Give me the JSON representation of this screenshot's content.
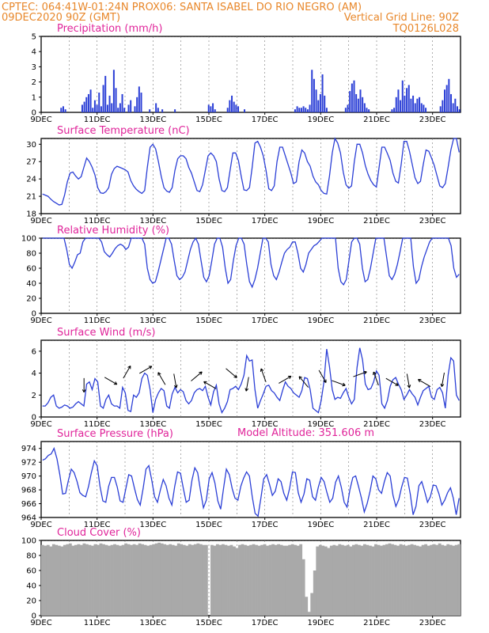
{
  "header": {
    "line1_left": "CPTEC:   064:41W-01:24N   PROX06: SANTA ISABEL DO RIO NEGRO (AM)",
    "line2_left": "09DEC2020 90Z (GMT)",
    "line2_right": "Vertical Grid Line: 90Z",
    "line3_right": "TQ0126L028",
    "model_altitude": "Model Altitude: 351.606 m"
  },
  "x_ticks": [
    "9DEC",
    "11DEC",
    "13DEC",
    "15DEC",
    "17DEC",
    "19DEC",
    "21DEC",
    "23DEC"
  ],
  "colors": {
    "header": "#e8872a",
    "title": "#e0249a",
    "line": "#2b3fd6",
    "cloud": "#a9a9a9"
  },
  "chart_data": [
    {
      "type": "bar",
      "title": "Precipitation (mm/h)",
      "ylim": [
        0,
        5
      ],
      "yticks": [
        0,
        1,
        2,
        3,
        4,
        5
      ],
      "series": [
        {
          "values": [
            0,
            0,
            0,
            0,
            0,
            0,
            0,
            0,
            0,
            0.3,
            0.4,
            0.2,
            0,
            0,
            0,
            0,
            0,
            0,
            0,
            0.5,
            0.7,
            1,
            1.2,
            1.5,
            0.3,
            0.8,
            0.5,
            1.3,
            0.4,
            1.8,
            2.4,
            0.5,
            1.1,
            0.6,
            2.8,
            1.6,
            0.3,
            0.6,
            1.2,
            0.3,
            0,
            0.5,
            0.8,
            0,
            0.4,
            1,
            1.7,
            1.3,
            0,
            0,
            0,
            0.2,
            0,
            0,
            0.6,
            0.3,
            0,
            0.2,
            0,
            0,
            0,
            0,
            0,
            0.2,
            0,
            0,
            0,
            0,
            0,
            0,
            0,
            0,
            0,
            0,
            0,
            0,
            0,
            0,
            0,
            0.5,
            0.4,
            0.6,
            0.2,
            0,
            0,
            0,
            0,
            0,
            0.3,
            0.8,
            1.1,
            0.7,
            0.5,
            0.4,
            0,
            0,
            0.2,
            0,
            0,
            0,
            0,
            0,
            0,
            0,
            0,
            0,
            0,
            0,
            0,
            0,
            0,
            0,
            0,
            0,
            0,
            0,
            0,
            0,
            0,
            0,
            0.2,
            0.4,
            0.3,
            0.3,
            0.4,
            0.3,
            0.2,
            0.5,
            2.8,
            2.2,
            1.5,
            0.8,
            1.2,
            2.5,
            1.1,
            0.3,
            0,
            0,
            0,
            0,
            0,
            0,
            0,
            0,
            0.3,
            0.5,
            1.4,
            1.9,
            2.1,
            1.2,
            0.9,
            1.5,
            1,
            0.6,
            0.3,
            0.2,
            0,
            0,
            0,
            0,
            0,
            0,
            0,
            0,
            0,
            0,
            0.2,
            0.3,
            1,
            1.5,
            0.8,
            2.1,
            1.1,
            1.6,
            1.8,
            0.9,
            1.1,
            0.6,
            0.9,
            1,
            0.6,
            0.5,
            0.3,
            0,
            0,
            0,
            0,
            0,
            0,
            0.4,
            0.8,
            1.5,
            1.8,
            2.2,
            1.2,
            0.6,
            0.9,
            0.4,
            0.2
          ]
        }
      ]
    },
    {
      "type": "line",
      "title": "Surface Temperature (nC)",
      "ylim": [
        18,
        31
      ],
      "yticks": [
        18,
        21,
        24,
        27,
        30
      ],
      "series": [
        {
          "values": [
            21.4,
            21.2,
            21,
            20.5,
            20.1,
            19.8,
            19.5,
            19.6,
            21.2,
            23.5,
            25,
            25.2,
            24.5,
            24,
            24.4,
            26,
            27.6,
            27,
            26,
            24.7,
            22.5,
            21.6,
            21.5,
            21.8,
            22.5,
            24.8,
            25.8,
            26.2,
            26,
            25.8,
            25.6,
            25.2,
            23.7,
            22.8,
            22.2,
            21.8,
            21.5,
            22,
            26,
            29.5,
            30,
            29.2,
            27,
            24.5,
            22.5,
            21.9,
            21.7,
            22.5,
            25.5,
            27.5,
            28,
            28,
            27.5,
            26,
            25,
            23.5,
            22,
            21.8,
            23,
            25.5,
            28,
            28.5,
            28,
            27,
            24,
            22,
            21.8,
            22.5,
            25.5,
            28.5,
            28.5,
            27.2,
            24.5,
            22.1,
            22,
            22.5,
            26,
            30.2,
            30.5,
            29.5,
            28,
            25.5,
            22.3,
            22,
            22.8,
            27,
            29.5,
            29.5,
            28,
            26.5,
            25,
            23.2,
            23.5,
            27,
            29,
            28.5,
            27,
            26.2,
            24.5,
            23.5,
            23,
            22,
            21.5,
            21.4,
            24.5,
            28.5,
            31,
            30.2,
            28.5,
            25.2,
            23,
            22.4,
            22.8,
            27,
            30,
            30,
            28.5,
            26.3,
            24.8,
            23.7,
            23,
            22.6,
            26,
            29.5,
            29.5,
            28.4,
            27.2,
            25,
            23.6,
            23.3,
            26.5,
            30.5,
            30.5,
            28.8,
            26.5,
            24.2,
            23.2,
            23.6,
            26.5,
            29,
            28.8,
            27.6,
            26.3,
            24.5,
            22.8,
            22.5,
            23.2,
            26,
            29,
            31,
            31,
            28.6
          ]
        }
      ]
    },
    {
      "type": "line",
      "title": "Relative Humidity (%)",
      "ylim": [
        0,
        100
      ],
      "yticks": [
        0,
        20,
        40,
        60,
        80,
        100
      ],
      "series": [
        {
          "values": [
            100,
            100,
            100,
            100,
            100,
            100,
            100,
            100,
            100,
            85,
            65,
            60,
            68,
            78,
            80,
            95,
            100,
            100,
            100,
            100,
            100,
            100,
            95,
            82,
            78,
            75,
            80,
            86,
            90,
            92,
            90,
            85,
            88,
            100,
            100,
            100,
            100,
            100,
            92,
            60,
            45,
            40,
            42,
            55,
            70,
            85,
            100,
            100,
            92,
            70,
            50,
            45,
            48,
            55,
            70,
            85,
            95,
            100,
            92,
            70,
            48,
            42,
            50,
            70,
            92,
            100,
            100,
            88,
            60,
            40,
            45,
            70,
            90,
            100,
            100,
            92,
            65,
            42,
            35,
            45,
            60,
            80,
            100,
            100,
            95,
            65,
            50,
            45,
            55,
            68,
            80,
            85,
            88,
            95,
            95,
            80,
            60,
            55,
            65,
            80,
            85,
            90,
            92,
            96,
            100,
            100,
            100,
            100,
            100,
            100,
            60,
            42,
            38,
            45,
            70,
            95,
            100,
            100,
            92,
            60,
            42,
            45,
            60,
            80,
            100,
            100,
            100,
            100,
            75,
            50,
            45,
            52,
            65,
            82,
            100,
            100,
            100,
            100,
            62,
            40,
            45,
            62,
            75,
            85,
            95,
            100,
            100,
            100,
            100,
            100,
            100,
            100,
            90,
            60,
            48,
            52
          ]
        }
      ]
    },
    {
      "type": "line",
      "title": "Surface Wind (m/s)",
      "ylim": [
        0,
        7
      ],
      "yticks": [
        0,
        2,
        4,
        6
      ],
      "series": [
        {
          "values": [
            1,
            1,
            1.3,
            1.8,
            2,
            1,
            0.8,
            0.9,
            1.1,
            1,
            0.8,
            0.9,
            1.2,
            1.4,
            1.2,
            1,
            3,
            3.2,
            2.5,
            3.5,
            3.2,
            1,
            0.8,
            1.6,
            2,
            1.2,
            1,
            1,
            0.8,
            2.7,
            2.2,
            0.6,
            0.5,
            2,
            1.8,
            2.2,
            3.5,
            4,
            3.8,
            2.5,
            0.4,
            1.6,
            2.2,
            2.6,
            2.4,
            1,
            0.8,
            2.1,
            2.7,
            2.2,
            2.5,
            2.3,
            1.5,
            1.2,
            1.5,
            2.2,
            2.5,
            2.6,
            2.4,
            2.8,
            1.8,
            1.1,
            2.3,
            2.9,
            1.2,
            0.4,
            0.8,
            1.4,
            2.5,
            2.6,
            2.8,
            2.5,
            3,
            3.8,
            5.6,
            5.1,
            5.2,
            2.5,
            0.8,
            1.5,
            2.1,
            2.8,
            2.9,
            2.4,
            2.2,
            1.8,
            1.5,
            2.4,
            3.2,
            2.8,
            2.6,
            2.2,
            2,
            1.8,
            2.4,
            3.6,
            3.5,
            2.5,
            0.8,
            0.6,
            0.4,
            1.5,
            3.2,
            6.2,
            4.6,
            2.5,
            1.6,
            1.8,
            1.7,
            2.2,
            2.6,
            1.8,
            1.2,
            1.6,
            4.5,
            6.3,
            5.2,
            3,
            2.5,
            2.6,
            3.2,
            4.2,
            3.8,
            1.2,
            0.8,
            1.5,
            2.8,
            3.4,
            3.6,
            3,
            2.5,
            1.6,
            2,
            2.5,
            2.1,
            1.8,
            1.1,
            1.8,
            2.4,
            2.6,
            2.8,
            1.8,
            1.6,
            2.5,
            2.7,
            2.2,
            0.8,
            3.8,
            5.4,
            5.1,
            2,
            1.5
          ]
        }
      ]
    },
    {
      "type": "line",
      "title": "Surface Pressure (hPa)",
      "ylim": [
        964,
        975
      ],
      "yticks": [
        964,
        966,
        968,
        970,
        972,
        974
      ],
      "series": [
        {
          "values": [
            972.3,
            972.5,
            973,
            973.2,
            974,
            972.5,
            970.2,
            967.4,
            967.5,
            969.4,
            971,
            970.5,
            969.2,
            967.6,
            967.2,
            967,
            968.5,
            970.5,
            972.2,
            971.5,
            968.5,
            966.4,
            966.2,
            968.5,
            969.8,
            969.8,
            968.4,
            966.4,
            966.2,
            968.2,
            970.2,
            970,
            968.2,
            966.6,
            965.8,
            968.2,
            971,
            971.5,
            969.4,
            967,
            966.2,
            968,
            969.5,
            968.6,
            966.8,
            965.8,
            968.5,
            970.6,
            970.4,
            968.2,
            966.2,
            966.5,
            969.4,
            971.2,
            970.5,
            967.8,
            965.4,
            966.5,
            969.6,
            970.5,
            969,
            966.4,
            965.2,
            968.2,
            971,
            970.2,
            968.2,
            966.8,
            966.5,
            968.5,
            969.7,
            970.6,
            970,
            967,
            964.6,
            964.2,
            966.8,
            969.6,
            970.2,
            968.8,
            967.2,
            967.8,
            969.6,
            969.2,
            967.5,
            966.5,
            968.2,
            970.6,
            970.5,
            967.6,
            966.2,
            967.4,
            969.6,
            969.4,
            967,
            966.5,
            968.4,
            969.8,
            969.2,
            967.6,
            966.2,
            966.8,
            969.1,
            970,
            968.4,
            966.2,
            965.5,
            968,
            969.8,
            970,
            968.5,
            966.8,
            964.8,
            966,
            967.8,
            970,
            969.6,
            968,
            967.5,
            969.2,
            970.5,
            970,
            967.2,
            965.6,
            966.6,
            968.4,
            969.8,
            969.7,
            967.4,
            964.4,
            965.6,
            968.6,
            969.2,
            967.8,
            966.2,
            967,
            968.7,
            968.6,
            967.4,
            965.8,
            966.5,
            967.6,
            968.3,
            966.8,
            964.4,
            966.8
          ]
        }
      ]
    },
    {
      "type": "area",
      "title": "Cloud Cover (%)",
      "ylim": [
        0,
        100
      ],
      "yticks": [
        0,
        20,
        40,
        60,
        80,
        100
      ],
      "series": [
        {
          "values": [
            94,
            93,
            94,
            92,
            95,
            94,
            93,
            92,
            94,
            95,
            96,
            93,
            94,
            95,
            94,
            96,
            95,
            94,
            93,
            95,
            94,
            96,
            95,
            94,
            93,
            94,
            95,
            94,
            93,
            94,
            96,
            95,
            94,
            95,
            94,
            96,
            95,
            94,
            93,
            94,
            95,
            96,
            97,
            96,
            95,
            94,
            95,
            94,
            93,
            96,
            95,
            94,
            93,
            95,
            94,
            95,
            96,
            95,
            94,
            94,
            0,
            94,
            93,
            95,
            94,
            95,
            94,
            93,
            94,
            92,
            90,
            94,
            95,
            94,
            93,
            94,
            95,
            94,
            93,
            94,
            95,
            93,
            94,
            95,
            94,
            95,
            94,
            93,
            93,
            94,
            95,
            94,
            93,
            95,
            75,
            25,
            5,
            30,
            60,
            92,
            94,
            93,
            92,
            90,
            93,
            94,
            93,
            95,
            94,
            93,
            94,
            92,
            94,
            95,
            94,
            93,
            95,
            94,
            93,
            92,
            95,
            94,
            93,
            94,
            95,
            96,
            95,
            94,
            93,
            95,
            94,
            93,
            94,
            95,
            94,
            93,
            92,
            94,
            95,
            93,
            94,
            95,
            94,
            96,
            94,
            93,
            95,
            94,
            93,
            94,
            95
          ]
        }
      ]
    }
  ]
}
